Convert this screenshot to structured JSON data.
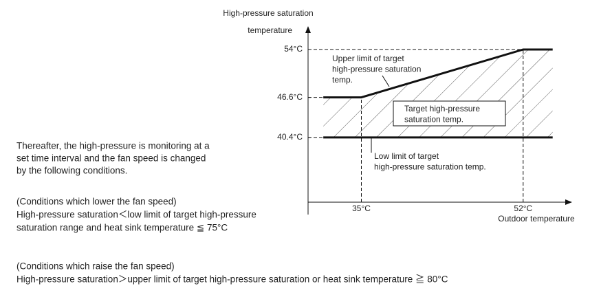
{
  "chart_data": {
    "type": "line",
    "ylabel": [
      "High-pressure saturation",
      "temperature"
    ],
    "xlabel": "Outdoor temperature",
    "xlim": [
      29.4,
      57
    ],
    "ylim": [
      30.4,
      57.4
    ],
    "xticks": [
      {
        "value": 35,
        "label": "35°C"
      },
      {
        "value": 52,
        "label": "52°C"
      }
    ],
    "yticks": [
      {
        "value": 40.4,
        "label": "40.4°C"
      },
      {
        "value": 46.6,
        "label": "46.6°C"
      },
      {
        "value": 54,
        "label": "54°C"
      }
    ],
    "series": [
      {
        "color": "#111111",
        "x": [
          31,
          35,
          52,
          55.1
        ],
        "values": [
          46.6,
          46.6,
          54,
          54
        ]
      },
      {
        "color": "#111111",
        "x": [
          31,
          55.1
        ],
        "values": [
          40.4,
          40.4
        ]
      }
    ],
    "annotations": [
      {
        "lines": [
          "Upper limit of target",
          "high-pressure saturation",
          "temp."
        ]
      },
      {
        "lines": [
          "Target high-pressure",
          "saturation temp."
        ]
      },
      {
        "lines": [
          "Low limit of target",
          "high-pressure saturation temp."
        ]
      }
    ]
  },
  "paragraphs": [
    {
      "lines": [
        "Thereafter, the high-pressure is monitoring at a",
        "set time interval and the fan speed is changed",
        "by the following conditions."
      ]
    },
    {
      "lines": [
        "(Conditions which lower the fan speed)",
        "High-pressure saturation＜low limit of target high-pressure",
        "saturation range and heat sink temperature ≦ 75°C"
      ]
    },
    {
      "lines": [
        "(Conditions which raise the fan speed)",
        "High-pressure saturation＞upper limit of target high-pressure saturation or heat sink temperature ≧ 80°C"
      ]
    }
  ]
}
